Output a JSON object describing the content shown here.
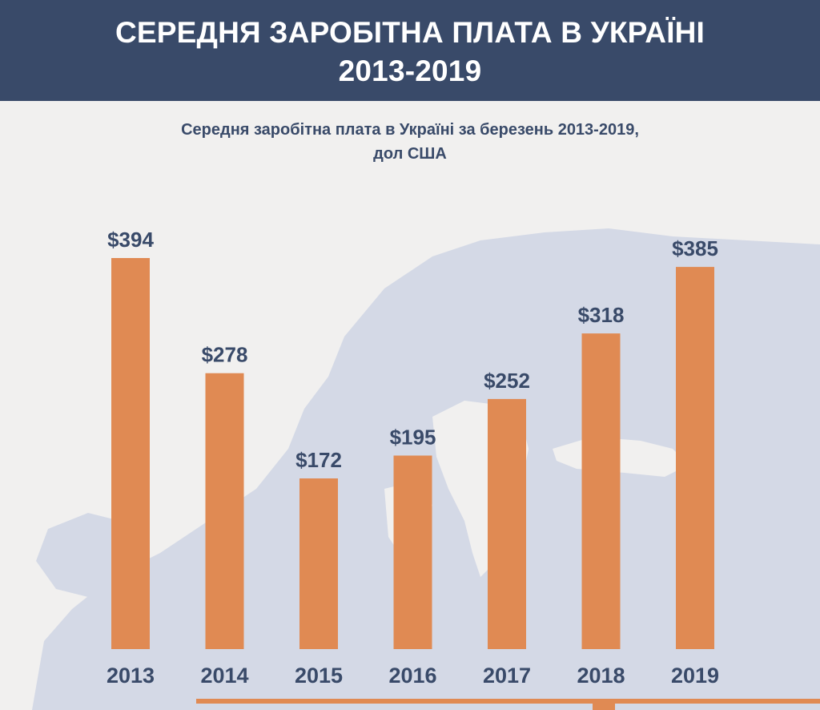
{
  "header": {
    "title_line1": "СЕРЕДНЯ ЗАРОБІТНА ПЛАТА В УКРАЇНІ",
    "title_line2": "2013-2019"
  },
  "colors": {
    "header_bg": "#394a69",
    "text": "#394a69",
    "bar": "#e08a53",
    "map": "#d4d9e6",
    "background": "#f1f0ef"
  },
  "chart_data": {
    "type": "bar",
    "title": "Середня заробітна плата в Україні за березень 2013-2019,",
    "subtitle": "дол США",
    "categories": [
      "2013",
      "2014",
      "2015",
      "2016",
      "2017",
      "2018",
      "2019"
    ],
    "values": [
      394,
      278,
      172,
      195,
      252,
      318,
      385
    ],
    "value_labels": [
      "$394",
      "$278",
      "$172",
      "$195",
      "$252",
      "$318",
      "$385"
    ],
    "xlabel": "",
    "ylabel": "",
    "ylim": [
      0,
      394
    ],
    "grid": false,
    "legend": "none",
    "background_image": "europe-map"
  }
}
